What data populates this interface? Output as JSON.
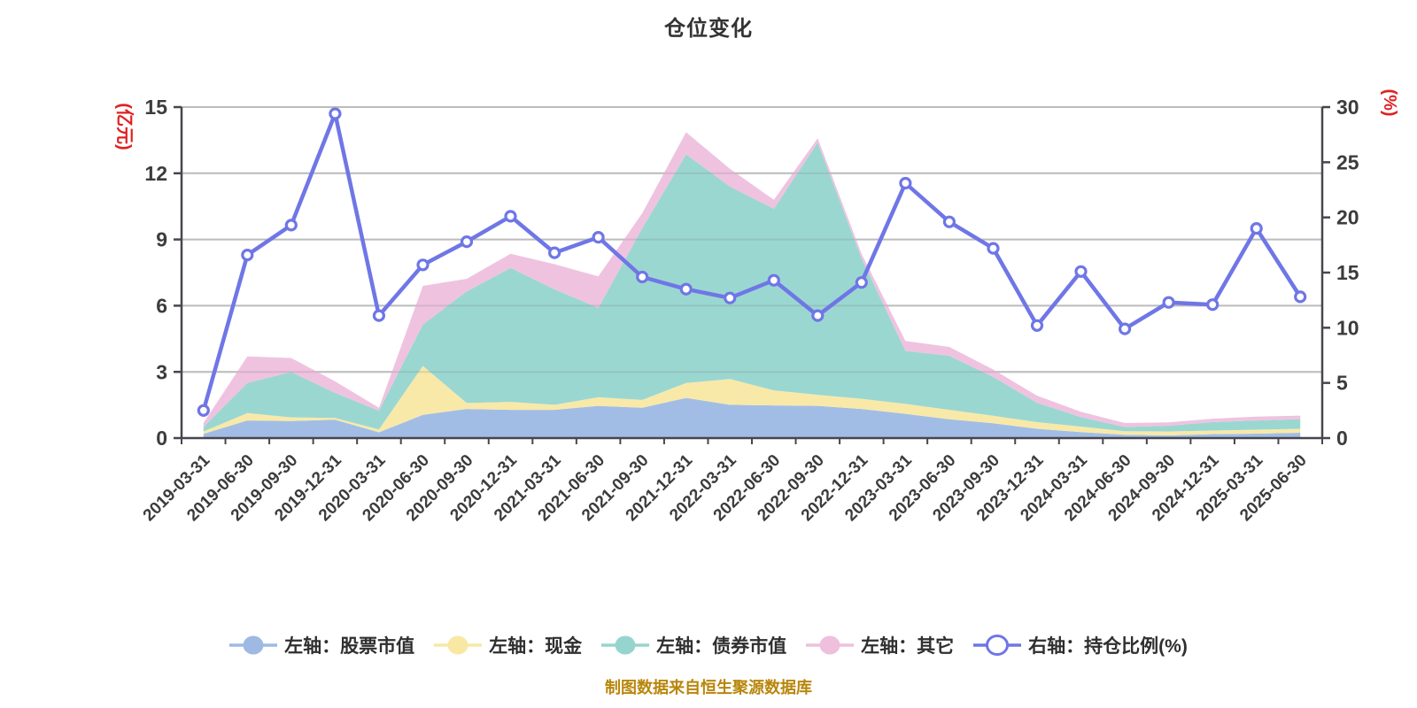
{
  "title": "仓位变化",
  "source_note": "制图数据来自恒生聚源数据库",
  "styles": {
    "background": "#ffffff",
    "grid_color": "#cccccc",
    "axis_color": "#46464f",
    "tick_text_color": "#3c3c3c",
    "title_color": "#333333",
    "legend_text_color": "#2f2f2f",
    "axis_name_color": "#e02020",
    "source_note_color": "#b8860b"
  },
  "chart_data": {
    "type": "area",
    "title": "仓位变化",
    "grid": true,
    "legend_position": "bottom",
    "left_axis": {
      "name": "(亿元)",
      "min": 0,
      "max": 15,
      "ticks": [
        0,
        3,
        6,
        9,
        12,
        15
      ]
    },
    "right_axis": {
      "name": "(%)",
      "min": 0,
      "max": 30,
      "ticks": [
        0,
        5,
        10,
        15,
        20,
        25,
        30
      ]
    },
    "categories": [
      "2019-03-31",
      "2019-06-30",
      "2019-09-30",
      "2019-12-31",
      "2020-03-31",
      "2020-06-30",
      "2020-09-30",
      "2020-12-31",
      "2021-03-31",
      "2021-06-30",
      "2021-09-30",
      "2021-12-31",
      "2022-03-31",
      "2022-06-30",
      "2022-09-30",
      "2022-12-31",
      "2023-03-31",
      "2023-06-30",
      "2023-09-30",
      "2023-12-31",
      "2024-03-31",
      "2024-06-30",
      "2024-09-30",
      "2024-12-31",
      "2025-03-31",
      "2025-06-30"
    ],
    "series": [
      {
        "name": "左轴：股票市值",
        "type": "area",
        "stack": "total",
        "y_axis": "left",
        "color": "#9db9e4",
        "values": [
          0.19,
          0.8,
          0.77,
          0.83,
          0.26,
          1.05,
          1.32,
          1.28,
          1.28,
          1.46,
          1.37,
          1.82,
          1.51,
          1.48,
          1.46,
          1.32,
          1.1,
          0.85,
          0.67,
          0.42,
          0.27,
          0.15,
          0.12,
          0.18,
          0.2,
          0.24
        ]
      },
      {
        "name": "左轴：现金",
        "type": "area",
        "stack": "total",
        "y_axis": "left",
        "color": "#f8e8a4",
        "values": [
          0.11,
          0.33,
          0.17,
          0.08,
          0.13,
          2.22,
          0.27,
          0.36,
          0.23,
          0.39,
          0.36,
          0.68,
          1.17,
          0.68,
          0.5,
          0.46,
          0.45,
          0.43,
          0.34,
          0.3,
          0.25,
          0.16,
          0.18,
          0.16,
          0.18,
          0.18
        ]
      },
      {
        "name": "左轴：债券市值",
        "type": "area",
        "stack": "total",
        "y_axis": "left",
        "color": "#96d5cf",
        "values": [
          0.2,
          1.37,
          2.06,
          1.14,
          0.85,
          1.88,
          5.06,
          6.07,
          5.23,
          4.05,
          7.78,
          10.36,
          8.72,
          8.23,
          11.43,
          6.37,
          2.4,
          2.45,
          1.76,
          0.88,
          0.43,
          0.19,
          0.26,
          0.38,
          0.42,
          0.44
        ]
      },
      {
        "name": "左轴：其它",
        "type": "area",
        "stack": "total",
        "y_axis": "left",
        "color": "#eec0de",
        "values": [
          0.19,
          1.2,
          0.63,
          0.52,
          0.13,
          1.75,
          0.57,
          0.64,
          1.14,
          1.43,
          0.68,
          1.0,
          0.8,
          0.41,
          0.2,
          0.2,
          0.45,
          0.4,
          0.34,
          0.32,
          0.24,
          0.18,
          0.15,
          0.16,
          0.17,
          0.16
        ]
      },
      {
        "name": "右轴：持仓比例(%)",
        "type": "line",
        "y_axis": "right",
        "color": "#6f76e6",
        "marker": "hollow-circle",
        "values": [
          2.5,
          16.6,
          19.3,
          29.4,
          11.1,
          15.7,
          17.8,
          20.1,
          16.8,
          18.2,
          14.6,
          13.5,
          12.7,
          14.3,
          11.1,
          14.1,
          23.1,
          19.6,
          17.2,
          10.2,
          15.1,
          9.9,
          12.3,
          12.1,
          19.0,
          12.8
        ]
      }
    ]
  }
}
